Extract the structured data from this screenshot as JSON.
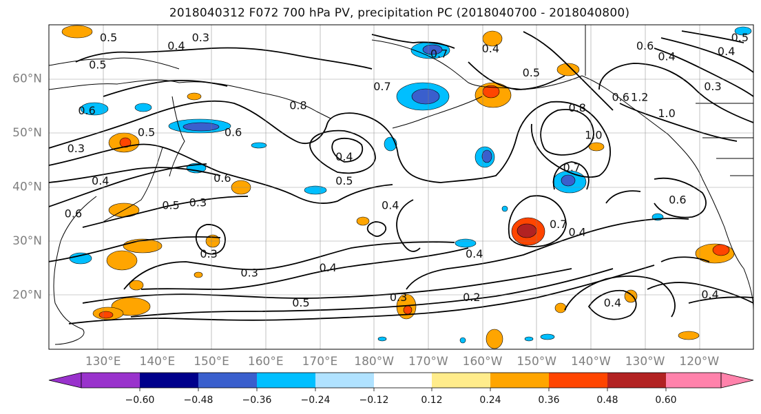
{
  "title": "2018040312 F072 700 hPa PV, precipitation PC (2018040700 - 2018040800)",
  "map": {
    "projection": "plate-carree",
    "lon_range_east": [
      120,
      250
    ],
    "lat_range": [
      10,
      70
    ],
    "gridlines": true,
    "lat_ticks": [
      {
        "lat": 20,
        "label": "20°N"
      },
      {
        "lat": 30,
        "label": "30°N"
      },
      {
        "lat": 40,
        "label": "40°N"
      },
      {
        "lat": 50,
        "label": "50°N"
      },
      {
        "lat": 60,
        "label": "60°N"
      }
    ],
    "lon_ticks": [
      {
        "lon": 130,
        "label": "130°E"
      },
      {
        "lon": 140,
        "label": "140°E"
      },
      {
        "lon": 150,
        "label": "150°E"
      },
      {
        "lon": 160,
        "label": "160°E"
      },
      {
        "lon": 170,
        "label": "170°E"
      },
      {
        "lon": 180,
        "label": "180°W"
      },
      {
        "lon": 190,
        "label": "170°W"
      },
      {
        "lon": 200,
        "label": "160°W"
      },
      {
        "lon": 210,
        "label": "150°W"
      },
      {
        "lon": 220,
        "label": "140°W"
      },
      {
        "lon": 230,
        "label": "130°W"
      },
      {
        "lon": 240,
        "label": "120°W"
      }
    ],
    "pv_contour_labels": [
      {
        "text": "0.5",
        "lon": 131,
        "lat": 67.5
      },
      {
        "text": "0.3",
        "lon": 148,
        "lat": 67.5
      },
      {
        "text": "0.4",
        "lon": 143.5,
        "lat": 66
      },
      {
        "text": "0.5",
        "lon": 129,
        "lat": 62.5
      },
      {
        "text": "0.6",
        "lon": 127,
        "lat": 54
      },
      {
        "text": "0.5",
        "lon": 138,
        "lat": 50
      },
      {
        "text": "0.6",
        "lon": 154,
        "lat": 50
      },
      {
        "text": "0.3",
        "lon": 125,
        "lat": 47
      },
      {
        "text": "0.4",
        "lon": 129.5,
        "lat": 41
      },
      {
        "text": "0.6",
        "lon": 124.5,
        "lat": 35
      },
      {
        "text": "0.6",
        "lon": 152,
        "lat": 41.5
      },
      {
        "text": "0.5",
        "lon": 142.5,
        "lat": 36.5
      },
      {
        "text": "0.3",
        "lon": 147.5,
        "lat": 37
      },
      {
        "text": "0.8",
        "lon": 166,
        "lat": 55
      },
      {
        "text": "0.7",
        "lon": 181.5,
        "lat": 58.5
      },
      {
        "text": "0.4",
        "lon": 174.5,
        "lat": 45.5
      },
      {
        "text": "0.5",
        "lon": 174.5,
        "lat": 41
      },
      {
        "text": "0.4",
        "lon": 183,
        "lat": 36.5
      },
      {
        "text": "0.3",
        "lon": 149.5,
        "lat": 27.5
      },
      {
        "text": "0.3",
        "lon": 157,
        "lat": 24
      },
      {
        "text": "0.4",
        "lon": 171.5,
        "lat": 25
      },
      {
        "text": "0.5",
        "lon": 166.5,
        "lat": 18.5
      },
      {
        "text": "0.3",
        "lon": 184.5,
        "lat": 19.5
      },
      {
        "text": "0.2",
        "lon": 198,
        "lat": 19.5
      },
      {
        "text": "0.4",
        "lon": 198.5,
        "lat": 27.5
      },
      {
        "text": "0.7",
        "lon": 192,
        "lat": 64.5
      },
      {
        "text": "0.4",
        "lon": 201.5,
        "lat": 65.5
      },
      {
        "text": "0.5",
        "lon": 209,
        "lat": 61
      },
      {
        "text": "0.8",
        "lon": 217.5,
        "lat": 54.5
      },
      {
        "text": "1.0",
        "lon": 220.5,
        "lat": 49.5
      },
      {
        "text": "0.7",
        "lon": 216.5,
        "lat": 43.5
      },
      {
        "text": "0.7",
        "lon": 214,
        "lat": 33
      },
      {
        "text": "0.4",
        "lon": 217.5,
        "lat": 31.5
      },
      {
        "text": "0.6",
        "lon": 225.5,
        "lat": 56.5
      },
      {
        "text": "1.2",
        "lon": 229,
        "lat": 56.5
      },
      {
        "text": "1.0",
        "lon": 234,
        "lat": 53.5
      },
      {
        "text": "0.6",
        "lon": 230,
        "lat": 66
      },
      {
        "text": "0.4",
        "lon": 234,
        "lat": 64
      },
      {
        "text": "0.3",
        "lon": 242.5,
        "lat": 58.5
      },
      {
        "text": "0.4",
        "lon": 245,
        "lat": 65
      },
      {
        "text": "0.5",
        "lon": 247.5,
        "lat": 67.5
      },
      {
        "text": "0.6",
        "lon": 236,
        "lat": 37.5
      },
      {
        "text": "0.4",
        "lon": 224,
        "lat": 18.5
      },
      {
        "text": "0.4",
        "lon": 242,
        "lat": 20
      }
    ]
  },
  "colorbar": {
    "ticks": [
      "−0.60",
      "−0.48",
      "−0.36",
      "−0.24",
      "−0.12",
      "0.12",
      "0.24",
      "0.36",
      "0.48",
      "0.60"
    ],
    "colors": [
      "#9932CC",
      "#00008B",
      "#3A5FCD",
      "#00BFFF",
      "#B0E2FF",
      "#FFFFFF",
      "#FFEC8B",
      "#FFA500",
      "#FF4500",
      "#B22222",
      "#FF82AB"
    ]
  }
}
